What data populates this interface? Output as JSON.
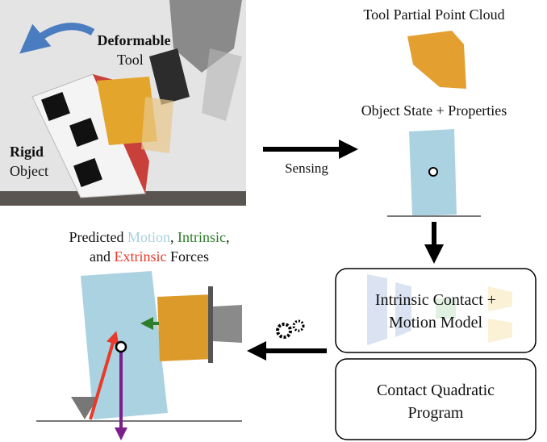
{
  "photo_labels": {
    "tool": [
      "Deformable",
      "Tool"
    ],
    "object": [
      "Rigid",
      "Object"
    ]
  },
  "sensing": {
    "point_cloud_title": "Tool Partial Point Cloud",
    "object_state_title": "Object State + Properties",
    "arrow_label": "Sensing"
  },
  "prediction": {
    "line1": [
      "Predicted ",
      "Motion",
      ", ",
      "Intrinsic",
      ","
    ],
    "line2": [
      "and ",
      "Extrinsic",
      " Forces"
    ]
  },
  "model": {
    "label": [
      "Intrinsic Contact +",
      "Motion Model"
    ]
  },
  "qp": {
    "label": [
      "Contact Quadratic",
      "Program"
    ]
  }
}
